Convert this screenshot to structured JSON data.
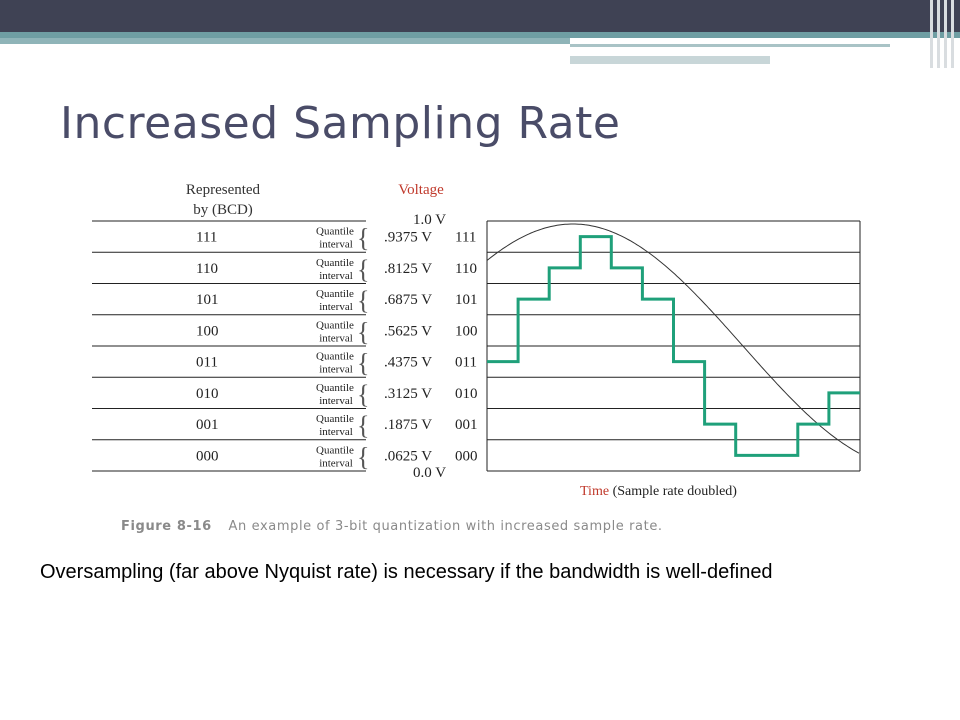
{
  "slide": {
    "title": "Increased Sampling Rate",
    "note": "Oversampling (far above Nyquist rate) is necessary if the bandwidth is well-defined"
  },
  "figure": {
    "header_represented": [
      "Represented",
      "by (BCD)"
    ],
    "header_voltage": "Voltage",
    "quantile_label": [
      "Quantile",
      "interval"
    ],
    "rows": [
      {
        "code": "111",
        "voltage": ".9375 V"
      },
      {
        "code": "110",
        "voltage": ".8125 V"
      },
      {
        "code": "101",
        "voltage": ".6875 V"
      },
      {
        "code": "100",
        "voltage": ".5625 V"
      },
      {
        "code": "011",
        "voltage": ".4375 V"
      },
      {
        "code": "010",
        "voltage": ".3125 V"
      },
      {
        "code": "001",
        "voltage": ".1875 V"
      },
      {
        "code": "000",
        "voltage": ".0625 V"
      }
    ],
    "top_label": "1.0 V",
    "bottom_label": "0.0 V",
    "x_label_time": "Time",
    "x_label_rest": "(Sample rate doubled)",
    "caption_label": "Figure 8-16",
    "caption_text": "An example of 3-bit quantization with increased sample rate.",
    "staircase_levels": [
      3,
      5,
      6,
      7,
      6,
      5,
      3,
      1,
      0,
      0,
      1,
      2
    ],
    "colors": {
      "staircase": "#1fa07a",
      "red_label": "#c0392b",
      "grid": "#222222",
      "title": "#4a4c68"
    }
  }
}
